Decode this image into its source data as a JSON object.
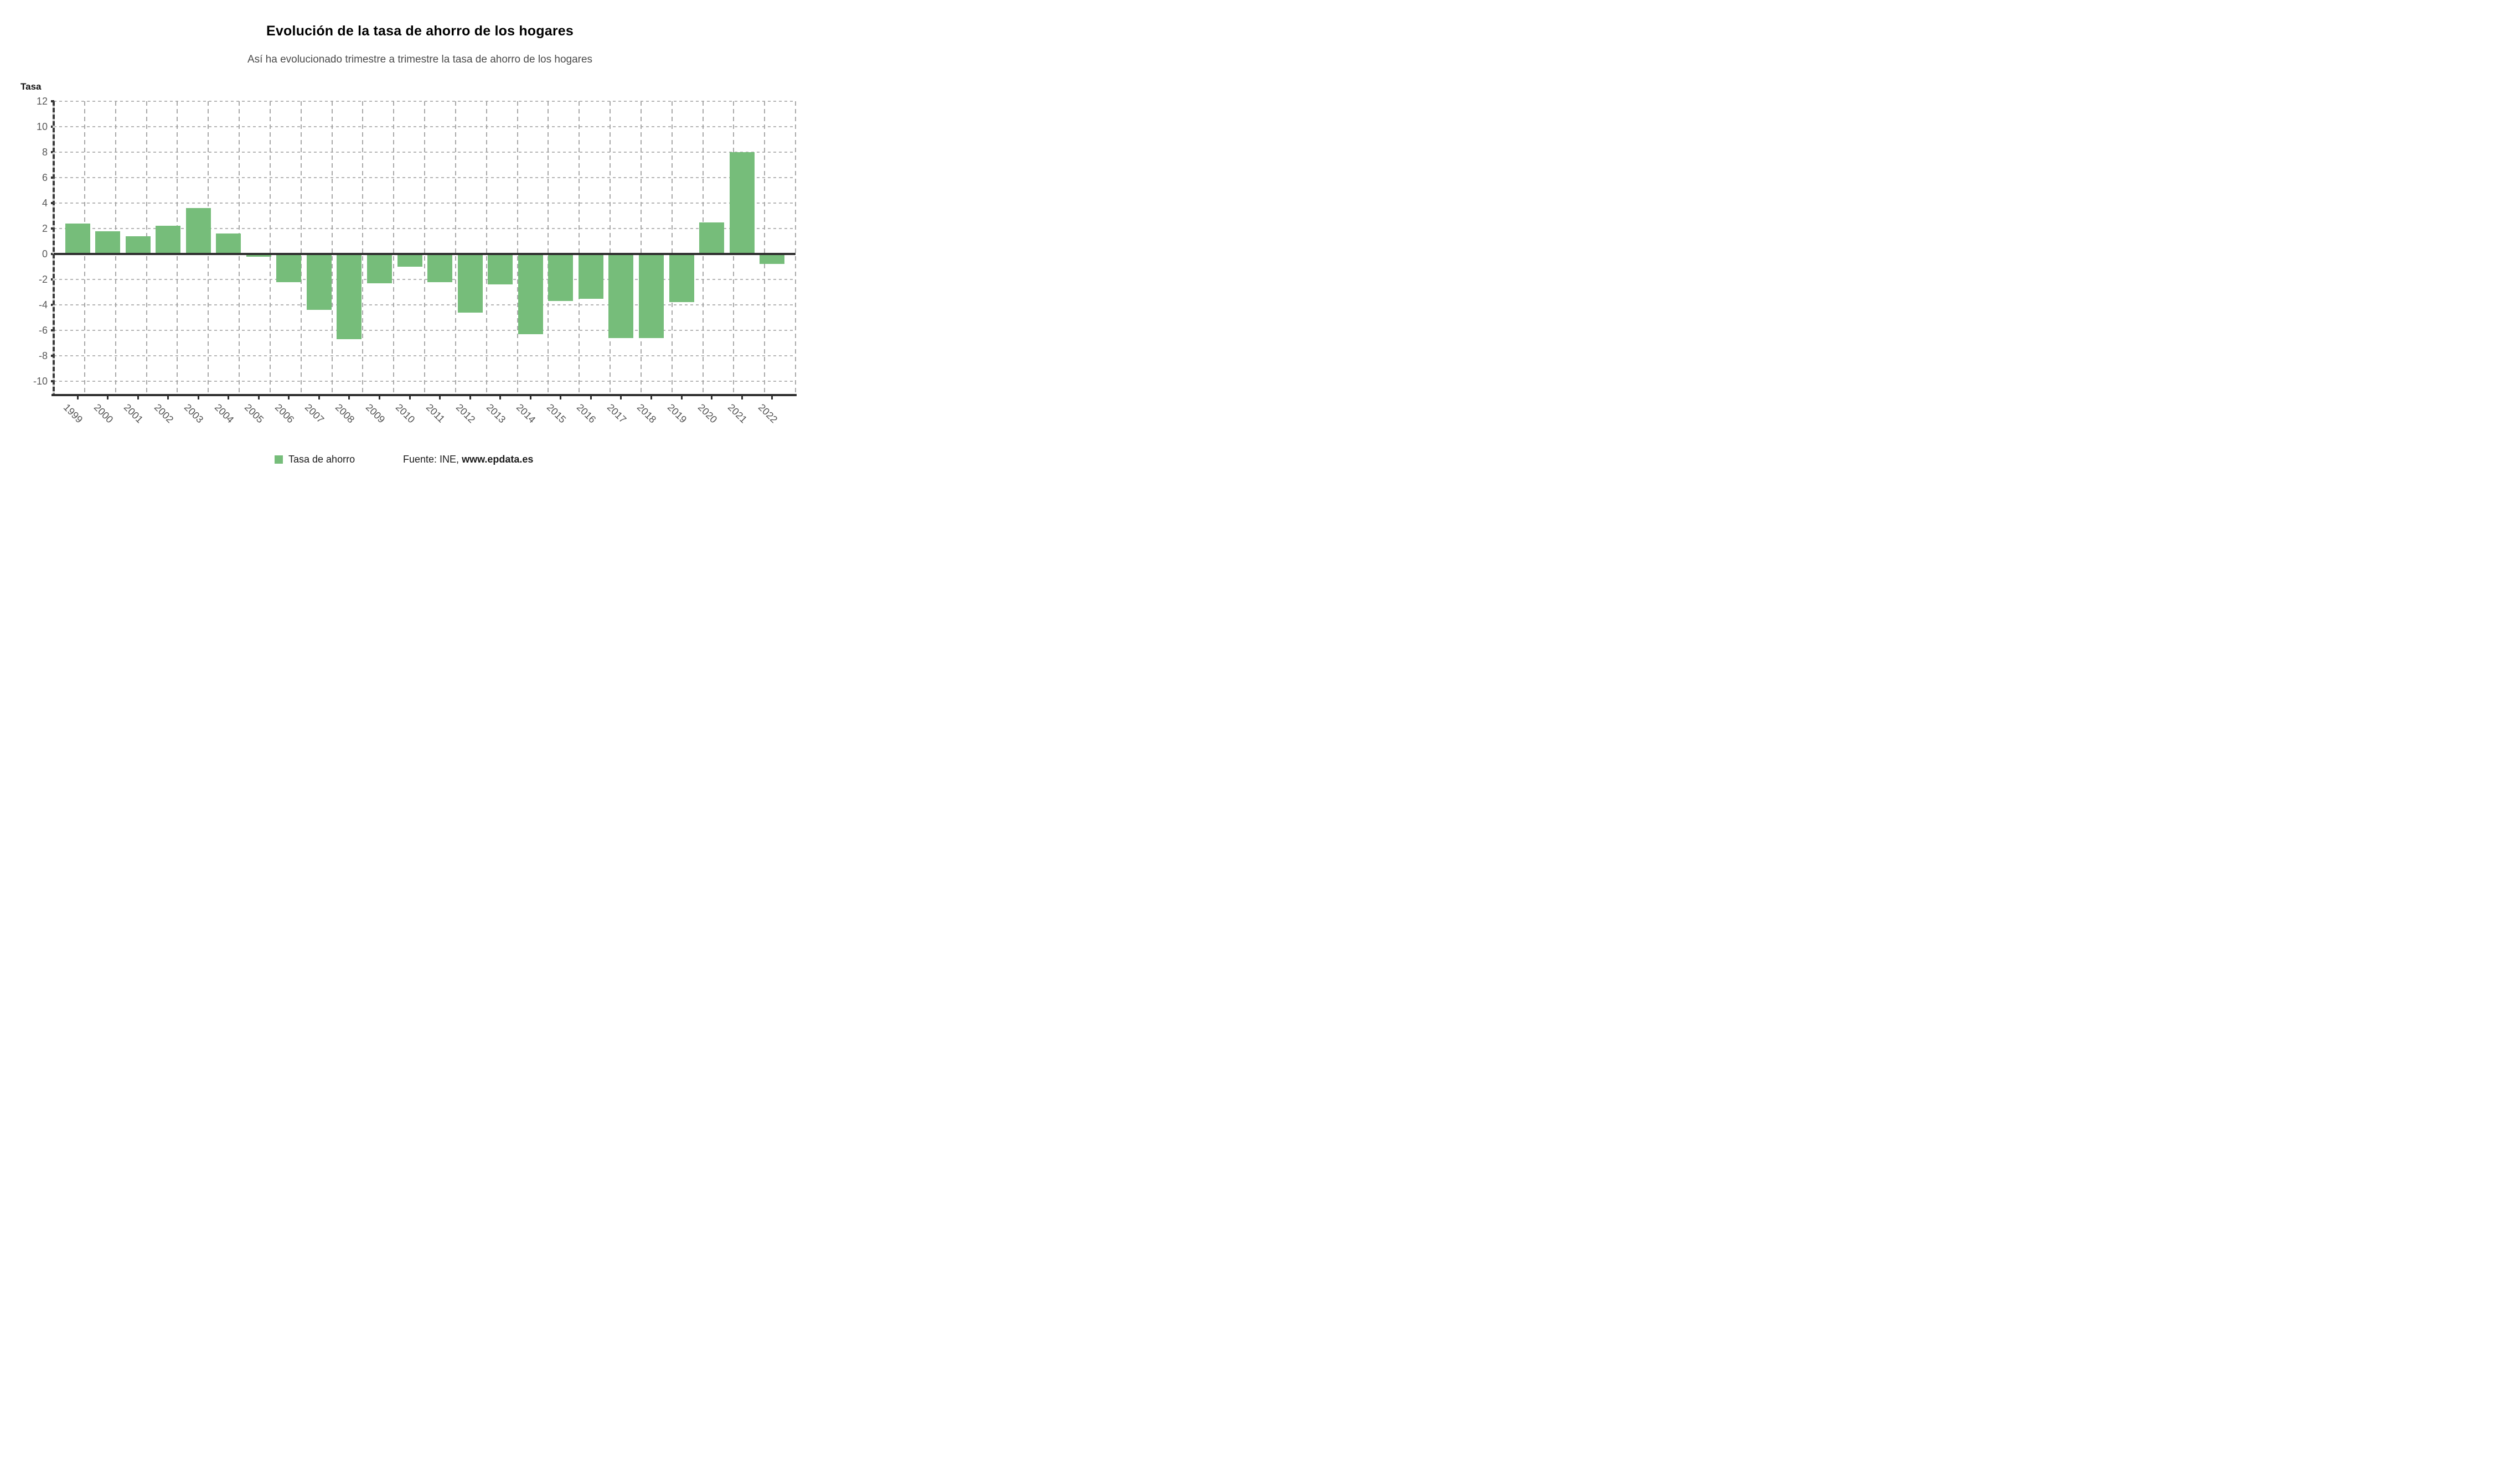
{
  "header": {
    "title": "Evolución de la tasa de ahorro de los hogares",
    "subtitle": "Así ha evolucionado trimestre a trimestre la tasa de ahorro de los hogares"
  },
  "chart_data": {
    "type": "bar",
    "title": "Evolución de la tasa de ahorro de los hogares",
    "subtitle": "Así ha evolucionado trimestre a trimestre la tasa de ahorro de los hogares",
    "ylabel": "Tasa",
    "xlabel": "",
    "categories": [
      "1999",
      "2000",
      "2001",
      "2002",
      "2003",
      "2004",
      "2005",
      "2006",
      "2007",
      "2008",
      "2009",
      "2010",
      "2011",
      "2012",
      "2013",
      "2014",
      "2015",
      "2016",
      "2017",
      "2018",
      "2019",
      "2020",
      "2021",
      "2022"
    ],
    "series": [
      {
        "name": "Tasa de ahorro",
        "values": [
          2.4,
          1.8,
          1.4,
          2.2,
          3.6,
          1.6,
          0.0,
          -2.2,
          -4.4,
          -6.7,
          -2.3,
          -1.0,
          -2.2,
          -4.6,
          -2.4,
          -6.3,
          -3.7,
          -3.5,
          -6.6,
          -6.6,
          -3.8,
          2.5,
          8.0,
          -0.8
        ],
        "color": "#76bd7a"
      }
    ],
    "ylim": [
      -11,
      12
    ],
    "yticks": [
      12,
      10,
      8,
      6,
      4,
      2,
      0,
      -2,
      -4,
      -6,
      -8,
      -10
    ],
    "grid": true,
    "x_tick_rotation": 45,
    "legend_position": "bottom",
    "source": "Fuente: INE, www.epdata.es"
  },
  "legend": {
    "series_label": "Tasa de ahorro",
    "source_prefix": "Fuente: INE, ",
    "source_bold": "www.epdata.es"
  },
  "colors": {
    "bar": "#76bd7a",
    "axis": "#2e2e2e",
    "grid_horizontal": "#b5b5b5",
    "grid_vertical": "#a8a8a8",
    "tick_label": "#595959",
    "subtitle": "#4a4a4a",
    "title": "#000000"
  }
}
